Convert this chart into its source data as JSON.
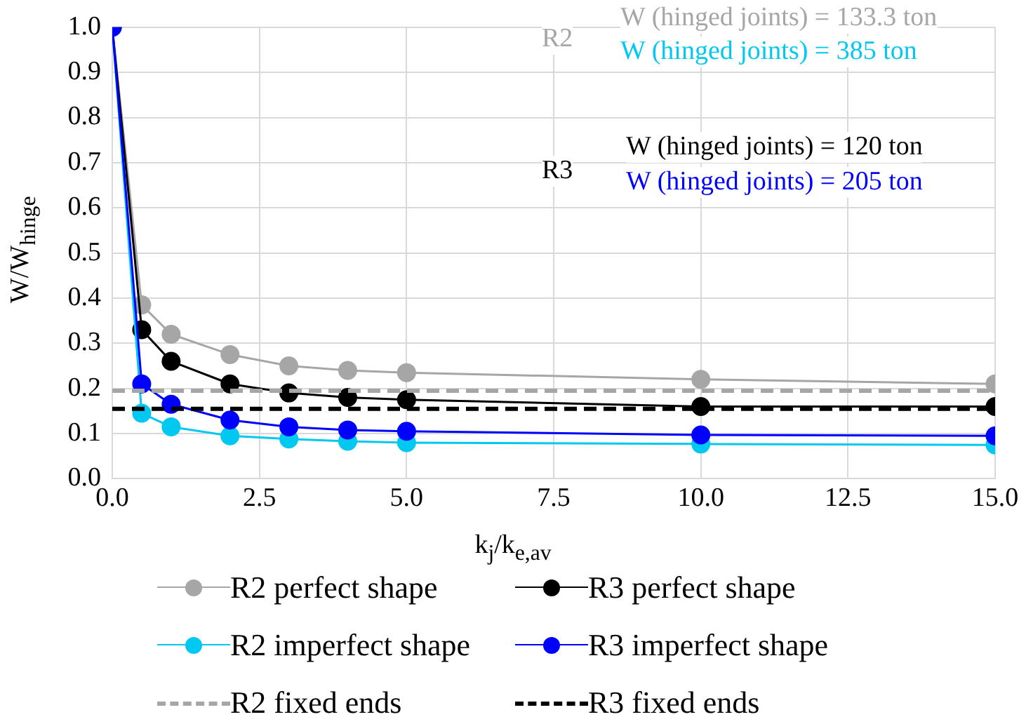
{
  "chart_data": {
    "type": "line",
    "xlabel": "k$_{j}$/k$_{e,av}$",
    "ylabel": "W/W$_{hinge}$",
    "x": [
      0,
      0.5,
      1,
      2,
      3,
      4,
      5,
      10,
      15
    ],
    "series": [
      {
        "name": "R2 perfect shape",
        "color": "#a6a6a6",
        "values": [
          1,
          0.385,
          0.32,
          0.275,
          0.25,
          0.24,
          0.235,
          0.22,
          0.21
        ]
      },
      {
        "name": "R3 perfect shape",
        "color": "#000000",
        "values": [
          1,
          0.33,
          0.26,
          0.21,
          0.19,
          0.18,
          0.175,
          0.16,
          0.16
        ]
      },
      {
        "name": "R2 imperfect shape",
        "color": "#00c8f0",
        "values": [
          1,
          0.145,
          0.115,
          0.095,
          0.088,
          0.083,
          0.08,
          0.077,
          0.075
        ]
      },
      {
        "name": "R3 imperfect shape",
        "color": "#0000ff",
        "values": [
          1,
          0.21,
          0.165,
          0.13,
          0.115,
          0.108,
          0.105,
          0.097,
          0.095
        ]
      },
      {
        "name": "R2 fixed ends",
        "color": "#a6a6a6",
        "values": [
          0.195,
          0.195,
          0.195,
          0.195,
          0.195,
          0.195,
          0.195,
          0.195,
          0.195
        ],
        "marker": "none",
        "line_style": "dashed"
      },
      {
        "name": "R3 fixed ends",
        "color": "#000000",
        "values": [
          0.155,
          0.155,
          0.155,
          0.155,
          0.155,
          0.155,
          0.155,
          0.155,
          0.155
        ],
        "marker": "none",
        "line_style": "dashed"
      }
    ],
    "xlim": [
      0,
      15
    ],
    "xticks": [
      {
        "value": 0,
        "label": "0.0"
      },
      2.5,
      {
        "value": 5,
        "label": "5.0"
      },
      7.5,
      {
        "value": 10,
        "label": "10.0"
      },
      12.5,
      {
        "value": 15,
        "label": "15.0"
      }
    ],
    "ylim": [
      0,
      1
    ],
    "yticks": [
      {
        "value": 0,
        "label": "0.0"
      },
      0.1,
      0.2,
      0.3,
      0.4,
      0.5,
      0.6,
      0.7,
      0.8,
      0.9,
      {
        "value": 1,
        "label": "1.0"
      }
    ],
    "grid": true,
    "legend": "bottom",
    "marker": "circle",
    "line_style": "solid",
    "annotations": [
      "R2",
      "W (hinged joints) = 133.3 ton",
      "W (hinged joints) = 385 ton",
      "R3",
      "W (hinged joints) = 120 ton",
      "W (hinged joints) = 205 ton"
    ]
  }
}
